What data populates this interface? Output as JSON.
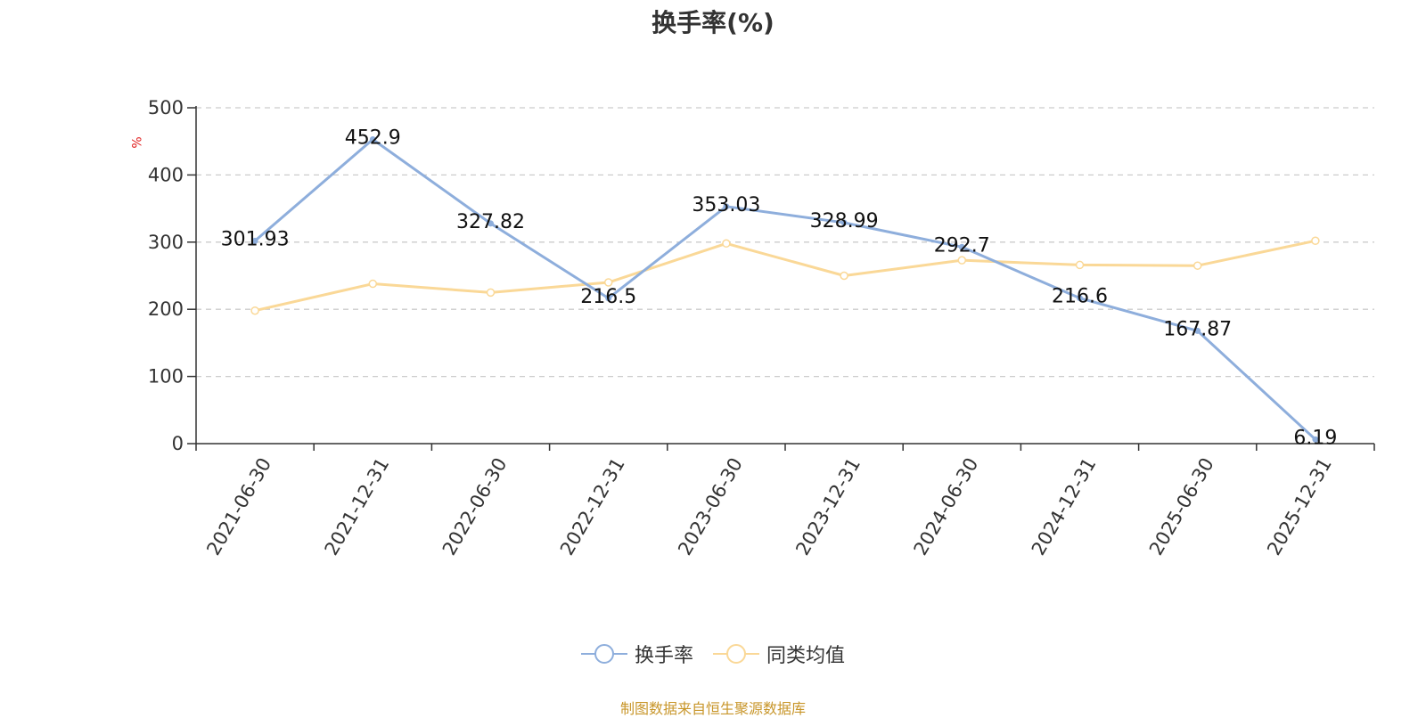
{
  "chart_data": {
    "type": "line",
    "title": "换手率(%)",
    "ylabel": "%",
    "xlabel": "",
    "categories": [
      "2021-06-30",
      "2021-12-31",
      "2022-06-30",
      "2022-12-31",
      "2023-06-30",
      "2023-12-31",
      "2024-06-30",
      "2024-12-31",
      "2025-06-30",
      "2025-12-31"
    ],
    "series": [
      {
        "name": "换手率",
        "color": "#8eaedc",
        "values": [
          301.93,
          452.9,
          327.82,
          216.5,
          353.03,
          328.99,
          292.7,
          216.6,
          167.87,
          6.19
        ],
        "labels": [
          "301.93",
          "452.9",
          "327.82",
          "216.5",
          "353.03",
          "328.99",
          "292.7",
          "216.6",
          "167.87",
          "6.19"
        ]
      },
      {
        "name": "同类均值",
        "color": "#fad897",
        "values": [
          198,
          238,
          225,
          240,
          298,
          250,
          273,
          266,
          265,
          302
        ]
      }
    ],
    "ylim": [
      0,
      500
    ],
    "yticks": [
      0,
      100,
      200,
      300,
      400,
      500
    ],
    "grid": true,
    "legend_position": "bottom-center"
  },
  "footer": {
    "source": "制图数据来自恒生聚源数据库"
  }
}
